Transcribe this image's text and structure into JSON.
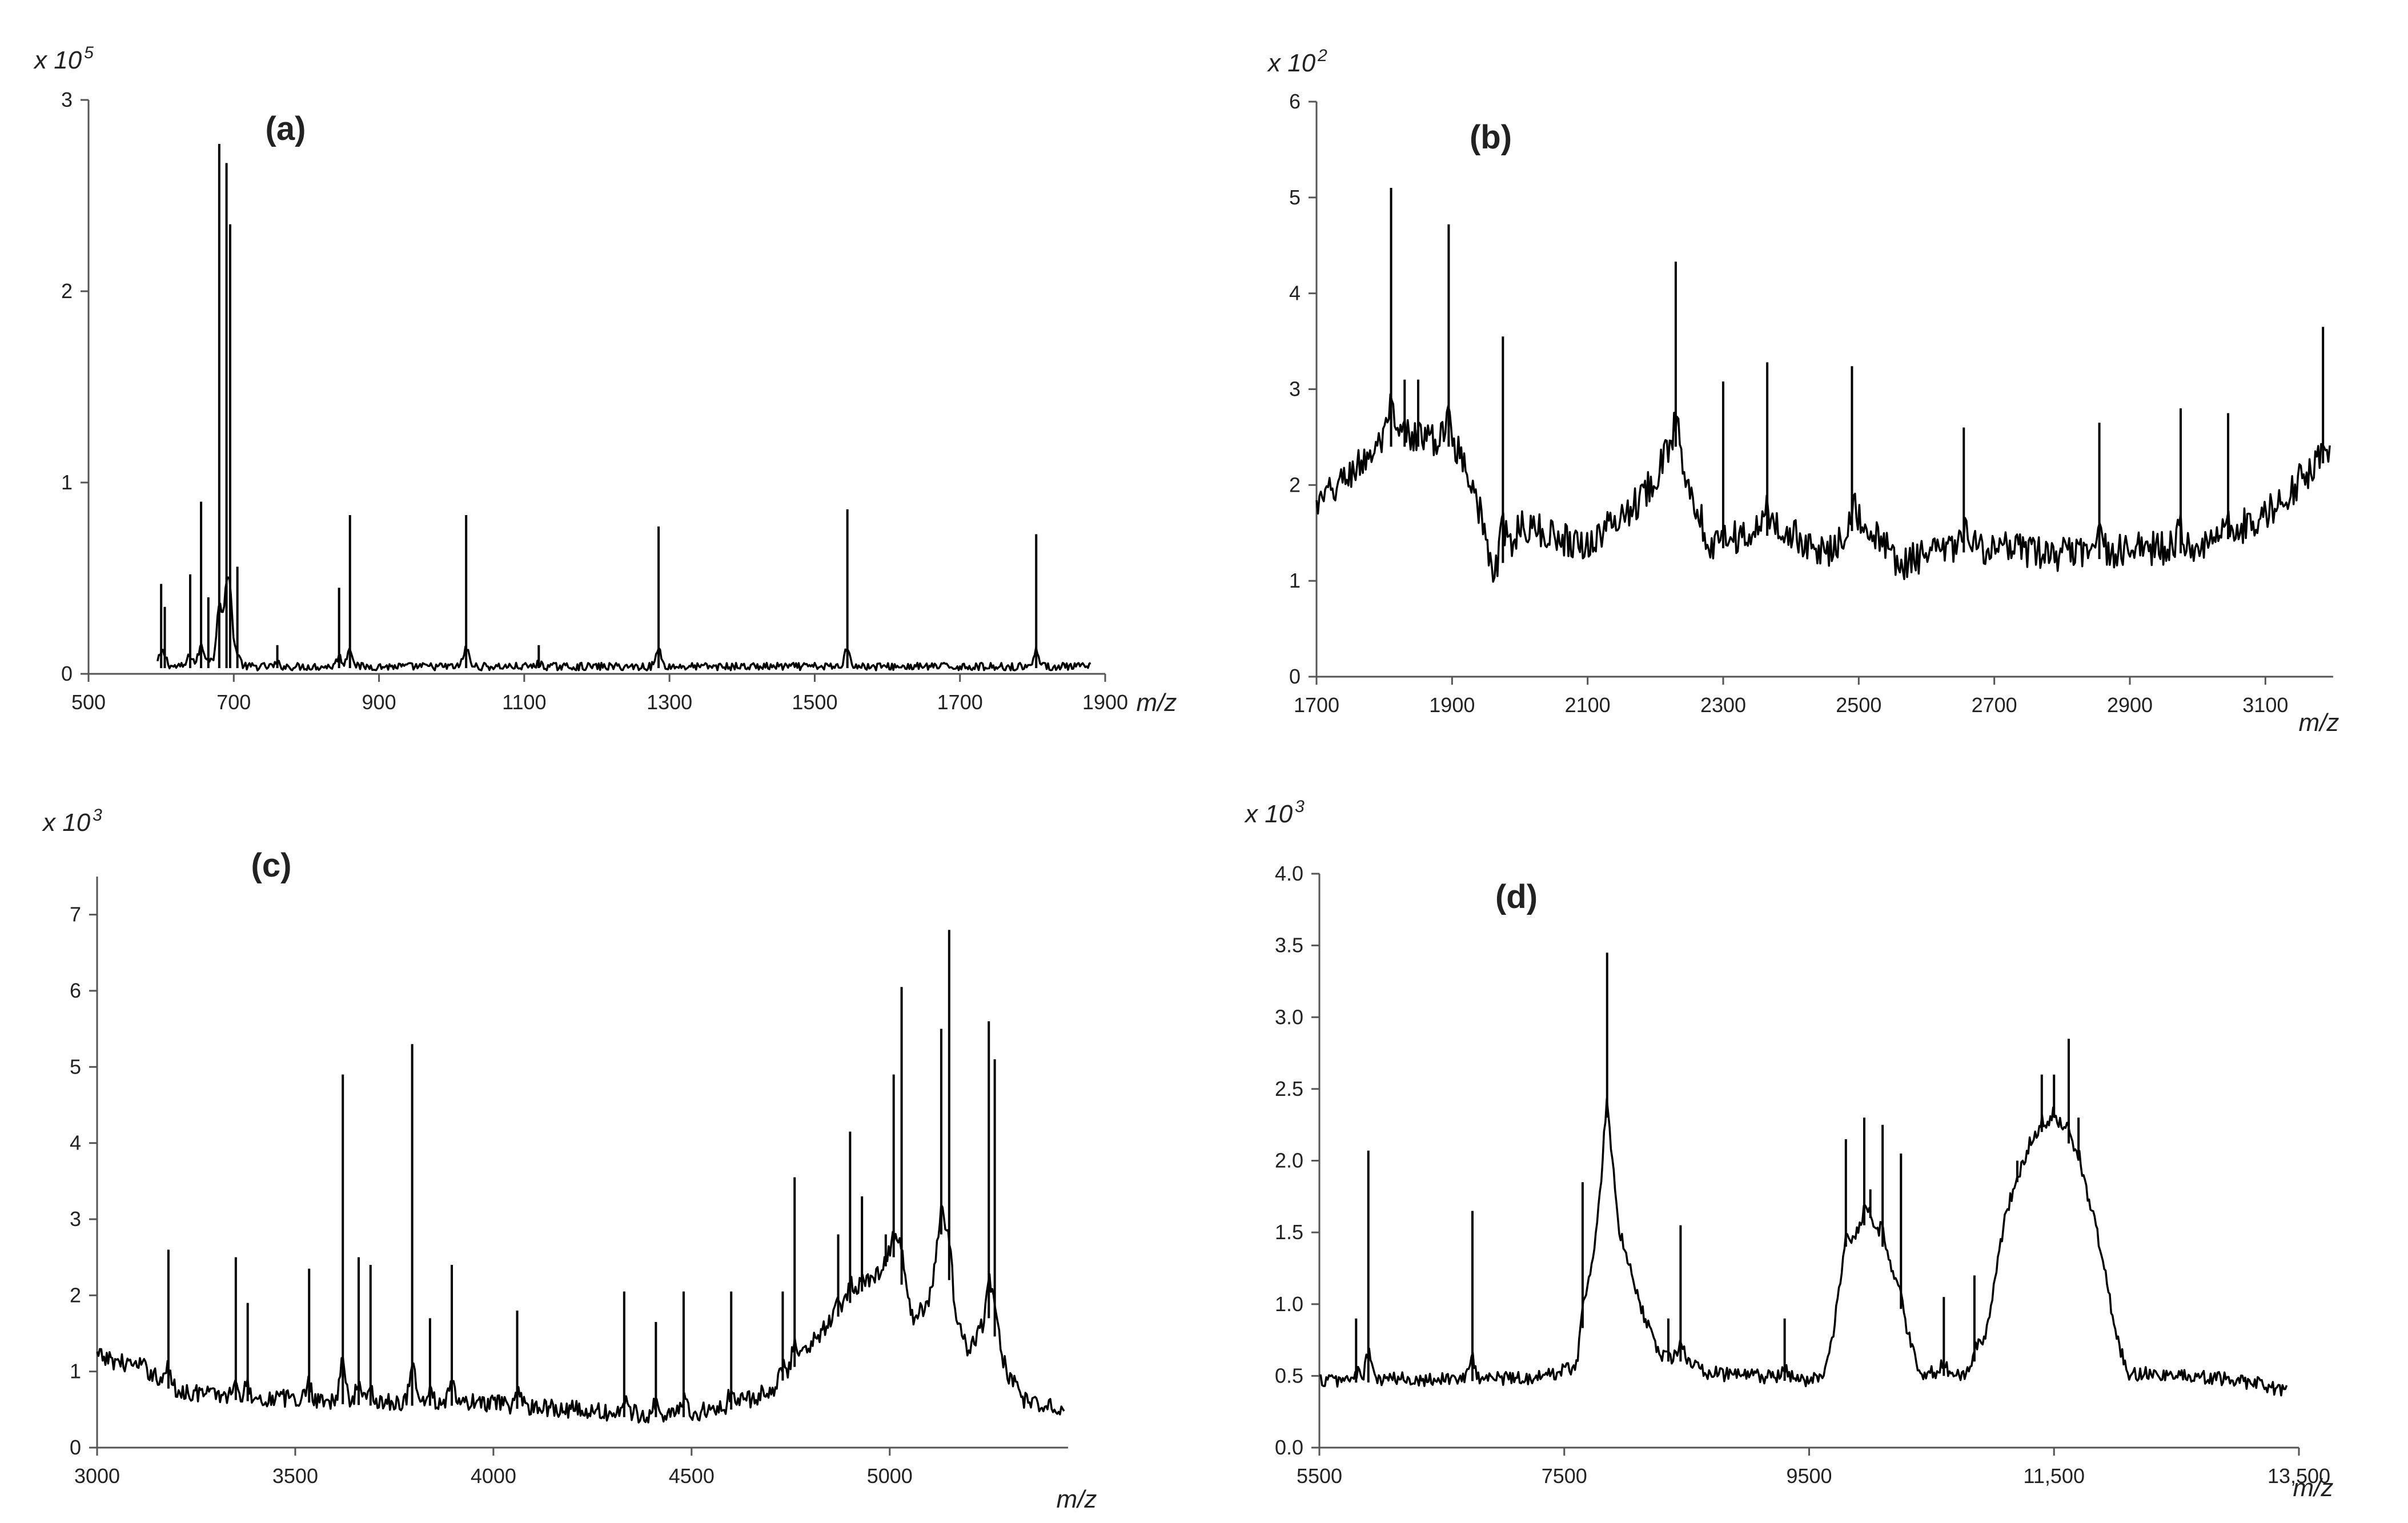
{
  "chart_data": [
    {
      "id": "a",
      "type": "line",
      "panel_label": "(a)",
      "multiplier_base": "x 10",
      "multiplier_exp": "5",
      "xlabel": "m/z",
      "xlim": [
        500,
        1900
      ],
      "ylim": [
        0,
        3
      ],
      "x_ticks": [
        500,
        700,
        900,
        1100,
        1300,
        1500,
        1700,
        1900
      ],
      "x_tick_labels": [
        "500",
        "700",
        "900",
        "1100",
        "1300",
        "1500",
        "1700",
        "1900"
      ],
      "y_ticks": [
        0,
        1,
        2,
        3
      ],
      "y_tick_labels": [
        "0",
        "1",
        "2",
        "3"
      ],
      "spectrum_range": [
        595,
        1880
      ],
      "baseline": 0.03,
      "noise": 0.02,
      "peaks": [
        {
          "x": 600,
          "y": 0.47
        },
        {
          "x": 605,
          "y": 0.35
        },
        {
          "x": 640,
          "y": 0.52
        },
        {
          "x": 655,
          "y": 0.9
        },
        {
          "x": 665,
          "y": 0.4
        },
        {
          "x": 680,
          "y": 2.77
        },
        {
          "x": 690,
          "y": 2.67
        },
        {
          "x": 695,
          "y": 2.35
        },
        {
          "x": 705,
          "y": 0.56
        },
        {
          "x": 760,
          "y": 0.15
        },
        {
          "x": 845,
          "y": 0.45
        },
        {
          "x": 860,
          "y": 0.83
        },
        {
          "x": 1020,
          "y": 0.83
        },
        {
          "x": 1120,
          "y": 0.15
        },
        {
          "x": 1285,
          "y": 0.77
        },
        {
          "x": 1545,
          "y": 0.86
        },
        {
          "x": 1805,
          "y": 0.73
        }
      ]
    },
    {
      "id": "b",
      "type": "line",
      "panel_label": "(b)",
      "multiplier_base": "x 10",
      "multiplier_exp": "2",
      "xlabel": "m/z",
      "xlim": [
        1700,
        3200
      ],
      "ylim": [
        0,
        6
      ],
      "x_ticks": [
        1700,
        1900,
        2100,
        2300,
        2500,
        2700,
        2900,
        3100
      ],
      "x_tick_labels": [
        "1700",
        "1900",
        "2100",
        "2300",
        "2500",
        "2700",
        "2900",
        "3100"
      ],
      "y_ticks": [
        0,
        1,
        2,
        3,
        4,
        5,
        6
      ],
      "y_tick_labels": [
        "0",
        "1",
        "2",
        "3",
        "4",
        "5",
        "6"
      ],
      "spectrum_range": [
        1700,
        3195
      ],
      "baseline_points": [
        [
          1700,
          1.7
        ],
        [
          1800,
          2.4
        ],
        [
          1900,
          2.4
        ],
        [
          1930,
          2.0
        ],
        [
          1960,
          1.0
        ],
        [
          2000,
          1.5
        ],
        [
          2100,
          1.3
        ],
        [
          2180,
          1.8
        ],
        [
          2230,
          2.4
        ],
        [
          2280,
          1.3
        ],
        [
          2380,
          1.5
        ],
        [
          2450,
          1.2
        ],
        [
          2500,
          1.6
        ],
        [
          2560,
          1.1
        ],
        [
          2650,
          1.3
        ],
        [
          2800,
          1.2
        ],
        [
          3000,
          1.3
        ],
        [
          3100,
          1.6
        ],
        [
          3195,
          2.3
        ]
      ],
      "noise": 0.18,
      "peaks": [
        {
          "x": 1810,
          "y": 5.1
        },
        {
          "x": 1830,
          "y": 3.1
        },
        {
          "x": 1850,
          "y": 3.1
        },
        {
          "x": 1895,
          "y": 4.72
        },
        {
          "x": 1975,
          "y": 3.55
        },
        {
          "x": 2230,
          "y": 4.33
        },
        {
          "x": 2300,
          "y": 3.08
        },
        {
          "x": 2365,
          "y": 3.28
        },
        {
          "x": 2490,
          "y": 3.24
        },
        {
          "x": 2655,
          "y": 2.6
        },
        {
          "x": 2855,
          "y": 2.65
        },
        {
          "x": 2975,
          "y": 2.8
        },
        {
          "x": 3045,
          "y": 2.75
        },
        {
          "x": 3185,
          "y": 3.65
        }
      ]
    },
    {
      "id": "c",
      "type": "line",
      "panel_label": "(c)",
      "multiplier_base": "x 10",
      "multiplier_exp": "3",
      "xlabel": "m/z",
      "xlim": [
        3000,
        5450
      ],
      "ylim": [
        0,
        7.5
      ],
      "x_ticks": [
        3000,
        3500,
        4000,
        4500,
        5000
      ],
      "x_tick_labels": [
        "3000",
        "3500",
        "4000",
        "4500",
        "5000"
      ],
      "y_ticks": [
        0,
        1,
        2,
        3,
        4,
        5,
        6,
        7
      ],
      "y_tick_labels": [
        "0",
        "1",
        "2",
        "3",
        "4",
        "5",
        "6",
        "7"
      ],
      "spectrum_range": [
        3000,
        5440
      ],
      "baseline_points": [
        [
          3000,
          1.15
        ],
        [
          3120,
          1.0
        ],
        [
          3200,
          0.7
        ],
        [
          3400,
          0.6
        ],
        [
          3500,
          0.6
        ],
        [
          3700,
          0.55
        ],
        [
          3900,
          0.55
        ],
        [
          4100,
          0.5
        ],
        [
          4300,
          0.4
        ],
        [
          4500,
          0.4
        ],
        [
          4600,
          0.5
        ],
        [
          4700,
          0.7
        ],
        [
          4800,
          1.3
        ],
        [
          4900,
          1.9
        ],
        [
          4960,
          2.2
        ],
        [
          5010,
          2.5
        ],
        [
          5060,
          1.6
        ],
        [
          5100,
          1.9
        ],
        [
          5130,
          2.8
        ],
        [
          5170,
          1.6
        ],
        [
          5200,
          1.2
        ],
        [
          5250,
          1.7
        ],
        [
          5300,
          0.9
        ],
        [
          5350,
          0.5
        ],
        [
          5440,
          0.5
        ]
      ],
      "noise": 0.12,
      "peaks": [
        {
          "x": 3180,
          "y": 2.6
        },
        {
          "x": 3350,
          "y": 2.5
        },
        {
          "x": 3380,
          "y": 1.9
        },
        {
          "x": 3535,
          "y": 2.35
        },
        {
          "x": 3620,
          "y": 4.9
        },
        {
          "x": 3660,
          "y": 2.5
        },
        {
          "x": 3690,
          "y": 2.4
        },
        {
          "x": 3795,
          "y": 5.3
        },
        {
          "x": 3840,
          "y": 1.7
        },
        {
          "x": 3895,
          "y": 2.4
        },
        {
          "x": 4060,
          "y": 1.8
        },
        {
          "x": 4330,
          "y": 2.05
        },
        {
          "x": 4410,
          "y": 1.65
        },
        {
          "x": 4480,
          "y": 2.05
        },
        {
          "x": 4600,
          "y": 2.05
        },
        {
          "x": 4730,
          "y": 2.05
        },
        {
          "x": 4760,
          "y": 3.55
        },
        {
          "x": 4870,
          "y": 2.8
        },
        {
          "x": 4900,
          "y": 4.15
        },
        {
          "x": 4930,
          "y": 3.3
        },
        {
          "x": 4990,
          "y": 2.8
        },
        {
          "x": 5010,
          "y": 4.9
        },
        {
          "x": 5030,
          "y": 6.05
        },
        {
          "x": 5130,
          "y": 5.5
        },
        {
          "x": 5150,
          "y": 6.8
        },
        {
          "x": 5250,
          "y": 5.6
        },
        {
          "x": 5265,
          "y": 5.1
        }
      ]
    },
    {
      "id": "d",
      "type": "line",
      "panel_label": "(d)",
      "multiplier_base": "x 10",
      "multiplier_exp": "3",
      "xlabel": "m/z",
      "xlim": [
        5500,
        13500
      ],
      "ylim": [
        0,
        4
      ],
      "x_ticks": [
        5500,
        7500,
        9500,
        11500,
        13500
      ],
      "x_tick_labels": [
        "5500",
        "7500",
        "9500",
        "11,500",
        "13,500"
      ],
      "y_ticks": [
        0,
        0.5,
        1,
        1.5,
        2,
        2.5,
        3,
        3.5,
        4
      ],
      "y_tick_labels": [
        "0.0",
        "0.5",
        "1.0",
        "1.5",
        "2.0",
        "2.5",
        "3.0",
        "3.5",
        "4.0"
      ],
      "spectrum_range": [
        5500,
        13400
      ],
      "baseline_points": [
        [
          5500,
          0.45
        ],
        [
          7300,
          0.47
        ],
        [
          7600,
          0.55
        ],
        [
          7750,
          1.4
        ],
        [
          7850,
          2.3
        ],
        [
          7950,
          1.5
        ],
        [
          8150,
          0.9
        ],
        [
          8300,
          0.6
        ],
        [
          8500,
          0.6
        ],
        [
          8650,
          0.5
        ],
        [
          9600,
          0.45
        ],
        [
          9700,
          0.8
        ],
        [
          9800,
          1.4
        ],
        [
          10000,
          1.6
        ],
        [
          10150,
          1.3
        ],
        [
          10300,
          0.8
        ],
        [
          10400,
          0.5
        ],
        [
          10800,
          0.5
        ],
        [
          10950,
          0.8
        ],
        [
          11100,
          1.6
        ],
        [
          11300,
          2.1
        ],
        [
          11500,
          2.3
        ],
        [
          11700,
          2.0
        ],
        [
          11850,
          1.5
        ],
        [
          12000,
          0.8
        ],
        [
          12100,
          0.5
        ],
        [
          13000,
          0.45
        ],
        [
          13400,
          0.38
        ]
      ],
      "noise": 0.05,
      "peaks": [
        {
          "x": 5800,
          "y": 0.9
        },
        {
          "x": 5900,
          "y": 2.07
        },
        {
          "x": 6750,
          "y": 1.65
        },
        {
          "x": 7650,
          "y": 1.85
        },
        {
          "x": 7850,
          "y": 3.45
        },
        {
          "x": 8350,
          "y": 0.9
        },
        {
          "x": 8450,
          "y": 1.55
        },
        {
          "x": 9300,
          "y": 0.9
        },
        {
          "x": 9800,
          "y": 2.15
        },
        {
          "x": 9950,
          "y": 2.3
        },
        {
          "x": 10000,
          "y": 1.8
        },
        {
          "x": 10100,
          "y": 2.25
        },
        {
          "x": 10250,
          "y": 2.05
        },
        {
          "x": 10600,
          "y": 1.05
        },
        {
          "x": 10850,
          "y": 1.2
        },
        {
          "x": 11200,
          "y": 2.0
        },
        {
          "x": 11400,
          "y": 2.6
        },
        {
          "x": 11500,
          "y": 2.6
        },
        {
          "x": 11620,
          "y": 2.85
        },
        {
          "x": 11700,
          "y": 2.3
        }
      ]
    }
  ]
}
